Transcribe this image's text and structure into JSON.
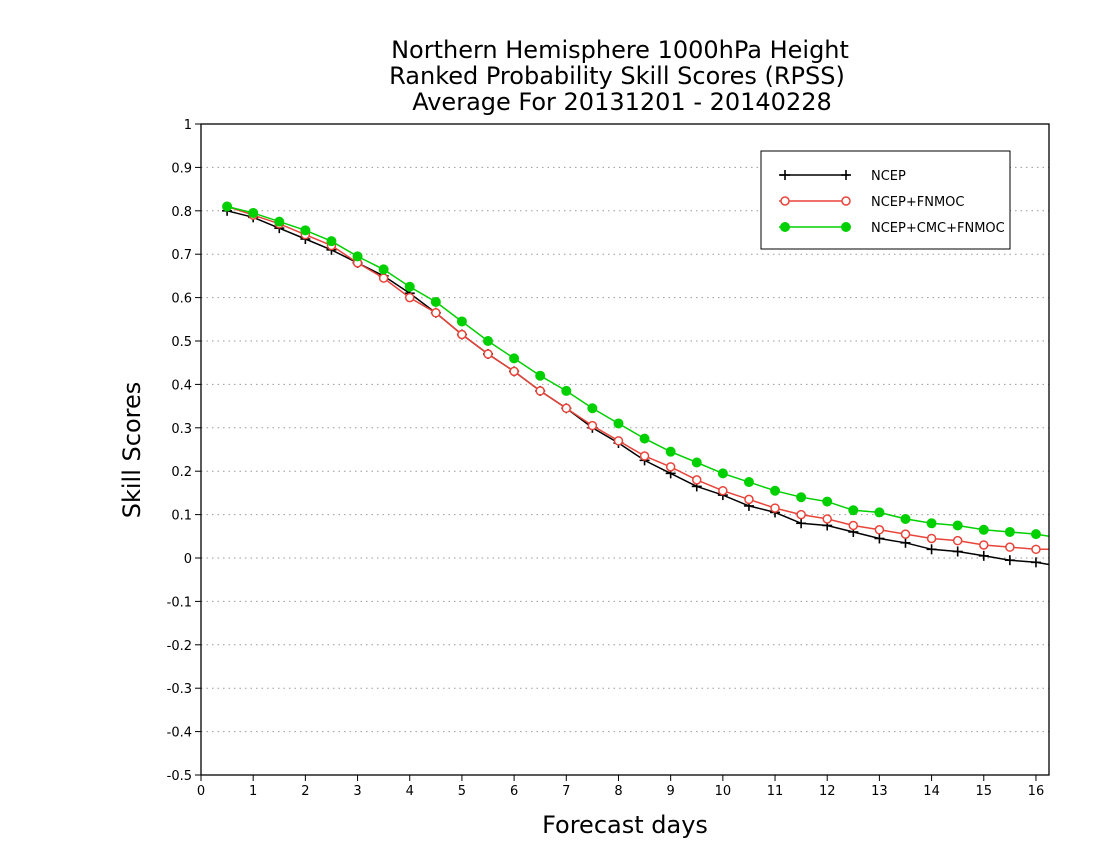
{
  "chart_data": {
    "type": "line",
    "title_lines": [
      "Northern Hemisphere 1000hPa Height",
      "Ranked Probability Skill Scores (RPSS)",
      "Average For 20131201 - 20140228"
    ],
    "xlabel": "Forecast days",
    "ylabel": "Skill Scores",
    "xlim": [
      0,
      16.25
    ],
    "ylim": [
      -0.5,
      1
    ],
    "xticks": [
      "0",
      "1",
      "2",
      "3",
      "4",
      "5",
      "6",
      "7",
      "8",
      "9",
      "10",
      "11",
      "12",
      "13",
      "14",
      "15",
      "16"
    ],
    "yticks": [
      "1",
      "0.9",
      "0.8",
      "0.7",
      "0.6",
      "0.5",
      "0.4",
      "0.3",
      "0.2",
      "0.1",
      "0",
      "-0.1",
      "-0.2",
      "-0.3",
      "-0.4",
      "-0.5"
    ],
    "grid": true,
    "legend_position": "top-right",
    "x": [
      0.5,
      1,
      1.5,
      2,
      2.5,
      3,
      3.5,
      4,
      4.5,
      5,
      5.5,
      6,
      6.5,
      7,
      7.5,
      8,
      8.5,
      9,
      9.5,
      10,
      10.5,
      11,
      11.5,
      12,
      12.5,
      13,
      13.5,
      14,
      14.5,
      15,
      15.5,
      16,
      16.25
    ],
    "series": [
      {
        "name": "NCEP",
        "color": "#000000",
        "marker": "plus",
        "values": [
          0.8,
          0.785,
          0.76,
          0.735,
          0.71,
          0.68,
          0.65,
          0.61,
          0.565,
          0.515,
          0.47,
          0.43,
          0.385,
          0.345,
          0.3,
          0.265,
          0.225,
          0.195,
          0.165,
          0.145,
          0.12,
          0.105,
          0.08,
          0.075,
          0.06,
          0.045,
          0.035,
          0.02,
          0.015,
          0.005,
          -0.005,
          -0.01,
          -0.015
        ]
      },
      {
        "name": "NCEP+FNMOC",
        "color": "#e8443a",
        "marker": "open-circle",
        "values": [
          0.81,
          0.79,
          0.77,
          0.745,
          0.72,
          0.68,
          0.645,
          0.6,
          0.565,
          0.515,
          0.47,
          0.43,
          0.385,
          0.345,
          0.305,
          0.27,
          0.235,
          0.21,
          0.18,
          0.155,
          0.135,
          0.115,
          0.1,
          0.09,
          0.075,
          0.065,
          0.055,
          0.045,
          0.04,
          0.03,
          0.025,
          0.02,
          0.02
        ]
      },
      {
        "name": "NCEP+CMC+FNMOC",
        "color": "#00d000",
        "marker": "filled-circle",
        "values": [
          0.81,
          0.795,
          0.775,
          0.755,
          0.73,
          0.695,
          0.665,
          0.625,
          0.59,
          0.545,
          0.5,
          0.46,
          0.42,
          0.385,
          0.345,
          0.31,
          0.275,
          0.245,
          0.22,
          0.195,
          0.175,
          0.155,
          0.14,
          0.13,
          0.11,
          0.105,
          0.09,
          0.08,
          0.075,
          0.065,
          0.06,
          0.055,
          0.05
        ]
      }
    ]
  }
}
